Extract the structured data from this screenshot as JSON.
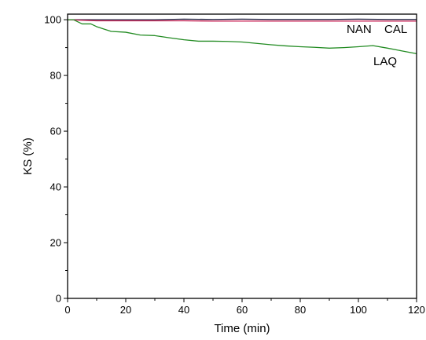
{
  "chart_data": {
    "type": "line",
    "title": "",
    "xlabel": "Time (min)",
    "ylabel": "KS (%)",
    "xlim": [
      0,
      120
    ],
    "ylim": [
      0,
      102
    ],
    "x_ticks": [
      0,
      20,
      40,
      60,
      80,
      100,
      120
    ],
    "y_ticks": [
      0,
      20,
      40,
      60,
      80,
      100
    ],
    "grid": false,
    "legend": "none",
    "series": [
      {
        "name": "NAN",
        "color": "#1a1a3a",
        "x": [
          0,
          10,
          20,
          30,
          40,
          50,
          60,
          70,
          80,
          90,
          100,
          110,
          120
        ],
        "y": [
          100,
          100,
          100,
          100,
          100.2,
          100.1,
          100.2,
          100.1,
          100.1,
          100.1,
          100.2,
          100.1,
          100.1
        ]
      },
      {
        "name": "CAL",
        "color": "#cc2255",
        "x": [
          0,
          10,
          20,
          30,
          40,
          50,
          60,
          70,
          80,
          90,
          100,
          110,
          120
        ],
        "y": [
          100,
          99.6,
          99.6,
          99.6,
          99.6,
          99.5,
          99.5,
          99.5,
          99.5,
          99.5,
          99.5,
          99.5,
          99.5
        ]
      },
      {
        "name": "LAQ",
        "color": "#228b22",
        "x": [
          0,
          2,
          5,
          8,
          10,
          15,
          20,
          25,
          30,
          35,
          40,
          45,
          50,
          55,
          60,
          65,
          70,
          75,
          80,
          85,
          90,
          95,
          100,
          105,
          110,
          115,
          120
        ],
        "y": [
          100,
          100,
          98.5,
          98.5,
          97.5,
          95.8,
          95.5,
          94.5,
          94.3,
          93.5,
          92.8,
          92.3,
          92.3,
          92.2,
          92.0,
          91.5,
          91.0,
          90.6,
          90.3,
          90.1,
          89.8,
          90.0,
          90.3,
          90.7,
          89.8,
          88.8,
          87.8
        ]
      }
    ],
    "annotations": [
      {
        "text": "NAN",
        "series": "NAN"
      },
      {
        "text": "CAL",
        "series": "CAL"
      },
      {
        "text": "LAQ",
        "series": "LAQ"
      }
    ]
  }
}
